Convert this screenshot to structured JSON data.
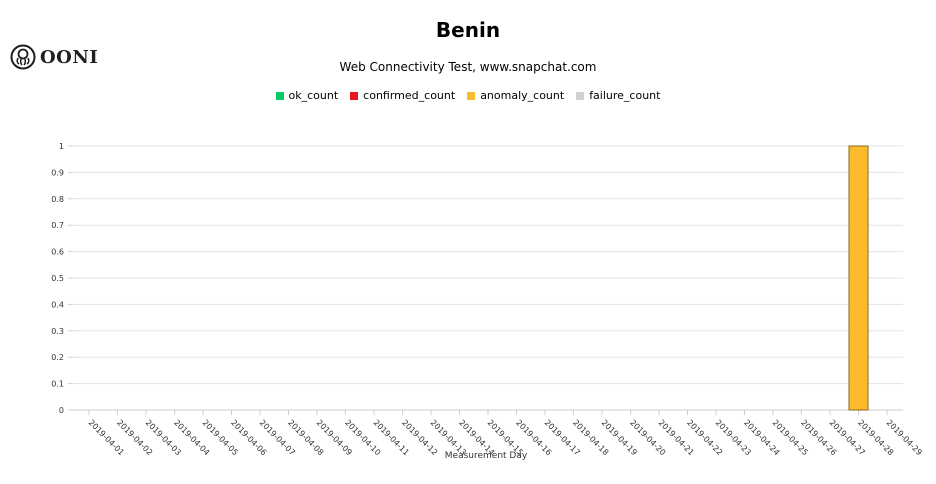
{
  "header": {
    "logo_text": "OONI",
    "title": "Benin",
    "subtitle": "Web Connectivity Test, www.snapchat.com"
  },
  "legend": [
    {
      "name": "ok_count",
      "color": "#00cc66"
    },
    {
      "name": "confirmed_count",
      "color": "#e8141e"
    },
    {
      "name": "anomaly_count",
      "color": "#fbbb2c"
    },
    {
      "name": "failure_count",
      "color": "#d0d0d0"
    }
  ],
  "chart_data": {
    "type": "bar",
    "xlabel": "Measurement Day",
    "ylabel": "",
    "ylim": [
      0,
      1
    ],
    "yticks": [
      "0",
      "0.1",
      "0.2",
      "0.3",
      "0.4",
      "0.5",
      "0.6",
      "0.7",
      "0.8",
      "0.9",
      "1"
    ],
    "grid": true,
    "stacked": true,
    "categories": [
      "2019-04-01",
      "2019-04-02",
      "2019-04-03",
      "2019-04-04",
      "2019-04-05",
      "2019-04-06",
      "2019-04-07",
      "2019-04-08",
      "2019-04-09",
      "2019-04-10",
      "2019-04-11",
      "2019-04-12",
      "2019-04-13",
      "2019-04-14",
      "2019-04-15",
      "2019-04-16",
      "2019-04-17",
      "2019-04-18",
      "2019-04-19",
      "2019-04-20",
      "2019-04-21",
      "2019-04-22",
      "2019-04-23",
      "2019-04-24",
      "2019-04-25",
      "2019-04-26",
      "2019-04-27",
      "2019-04-28",
      "2019-04-29"
    ],
    "series": [
      {
        "name": "ok_count",
        "color": "#00cc66",
        "values": [
          0,
          0,
          0,
          0,
          0,
          0,
          0,
          0,
          0,
          0,
          0,
          0,
          0,
          0,
          0,
          0,
          0,
          0,
          0,
          0,
          0,
          0,
          0,
          0,
          0,
          0,
          0,
          0,
          0
        ]
      },
      {
        "name": "confirmed_count",
        "color": "#e8141e",
        "values": [
          0,
          0,
          0,
          0,
          0,
          0,
          0,
          0,
          0,
          0,
          0,
          0,
          0,
          0,
          0,
          0,
          0,
          0,
          0,
          0,
          0,
          0,
          0,
          0,
          0,
          0,
          0,
          0,
          0
        ]
      },
      {
        "name": "anomaly_count",
        "color": "#fbbb2c",
        "values": [
          0,
          0,
          0,
          0,
          0,
          0,
          0,
          0,
          0,
          0,
          0,
          0,
          0,
          0,
          0,
          0,
          0,
          0,
          0,
          0,
          0,
          0,
          0,
          0,
          0,
          0,
          0,
          1,
          0
        ]
      },
      {
        "name": "failure_count",
        "color": "#d0d0d0",
        "values": [
          0,
          0,
          0,
          0,
          0,
          0,
          0,
          0,
          0,
          0,
          0,
          0,
          0,
          0,
          0,
          0,
          0,
          0,
          0,
          0,
          0,
          0,
          0,
          0,
          0,
          0,
          0,
          0,
          0
        ]
      }
    ]
  }
}
